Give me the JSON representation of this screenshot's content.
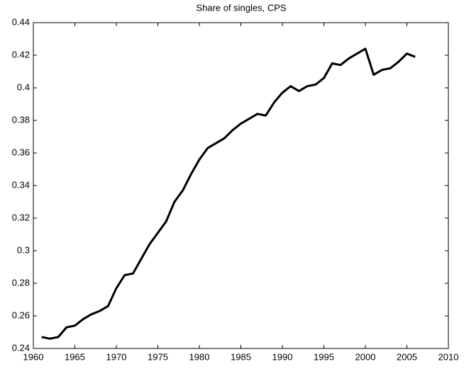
{
  "chart_data": {
    "type": "line",
    "title": "Share of singles, CPS",
    "x": [
      1961,
      1962,
      1963,
      1964,
      1965,
      1966,
      1967,
      1968,
      1969,
      1970,
      1971,
      1972,
      1973,
      1974,
      1975,
      1976,
      1977,
      1978,
      1979,
      1980,
      1981,
      1982,
      1983,
      1984,
      1985,
      1986,
      1987,
      1988,
      1989,
      1990,
      1991,
      1992,
      1993,
      1994,
      1995,
      1996,
      1997,
      1998,
      1999,
      2000,
      2001,
      2002,
      2003,
      2004,
      2005,
      2006
    ],
    "series": [
      {
        "color": "#000000",
        "values": [
          0.247,
          0.246,
          0.247,
          0.253,
          0.254,
          0.258,
          0.261,
          0.263,
          0.266,
          0.277,
          0.285,
          0.286,
          0.295,
          0.304,
          0.311,
          0.318,
          0.33,
          0.337,
          0.347,
          0.356,
          0.363,
          0.366,
          0.369,
          0.374,
          0.378,
          0.381,
          0.384,
          0.383,
          0.391,
          0.397,
          0.401,
          0.398,
          0.401,
          0.402,
          0.406,
          0.415,
          0.414,
          0.418,
          0.421,
          0.424,
          0.408,
          0.411,
          0.412,
          0.416,
          0.421,
          0.419
        ]
      }
    ],
    "xlim": [
      1960,
      2010
    ],
    "xticks": [
      1960,
      1965,
      1970,
      1975,
      1980,
      1985,
      1990,
      1995,
      2000,
      2005,
      2010
    ],
    "ylim": [
      0.24,
      0.44
    ],
    "yticks": [
      0.24,
      0.26,
      0.28,
      0.3,
      0.32,
      0.34,
      0.36,
      0.38,
      0.4,
      0.42,
      0.44
    ],
    "grid": false
  }
}
